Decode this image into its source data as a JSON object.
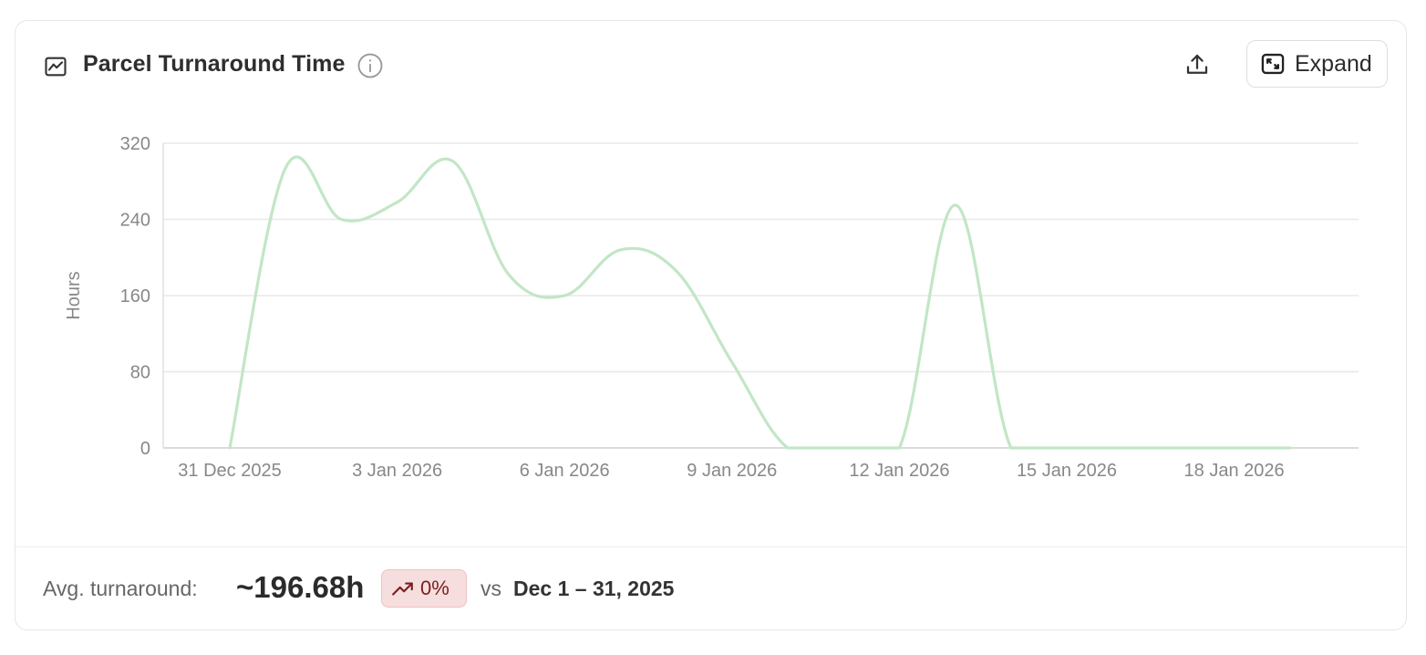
{
  "header": {
    "title": "Parcel Turnaround Time",
    "expand_label": "Expand"
  },
  "icons": {
    "chart": "line-chart-icon",
    "info": "info-icon",
    "export": "upload-icon",
    "expand": "expand-icon",
    "trend": "trending-up-icon"
  },
  "chart_data": {
    "type": "line",
    "ylabel": "Hours",
    "ylim": [
      0,
      320
    ],
    "yticks": [
      0,
      80,
      160,
      240,
      320
    ],
    "xticks": [
      "31 Dec 2025",
      "3 Jan 2026",
      "6 Jan 2026",
      "9 Jan 2026",
      "12 Jan 2026",
      "15 Jan 2026",
      "18 Jan 2026"
    ],
    "grid": true,
    "color": "#c2e6c6",
    "series": [
      {
        "x": [
          "2025-12-31",
          "2026-01-01",
          "2026-01-02",
          "2026-01-03",
          "2026-01-04",
          "2026-01-05",
          "2026-01-06",
          "2026-01-07",
          "2026-01-08",
          "2026-01-09",
          "2026-01-10",
          "2026-01-11",
          "2026-01-12",
          "2026-01-13",
          "2026-01-14",
          "2026-01-15",
          "2026-01-16",
          "2026-01-17",
          "2026-01-18",
          "2026-01-19"
        ],
        "values": [
          0,
          294,
          240,
          258,
          301,
          182,
          160,
          208,
          186,
          90,
          0,
          0,
          0,
          255,
          0,
          0,
          0,
          0,
          0,
          0
        ]
      }
    ]
  },
  "footer": {
    "avg_label": "Avg. turnaround:",
    "avg_value": "~196.68h",
    "change": "0%",
    "vs": "vs",
    "period": "Dec 1 – 31, 2025"
  }
}
